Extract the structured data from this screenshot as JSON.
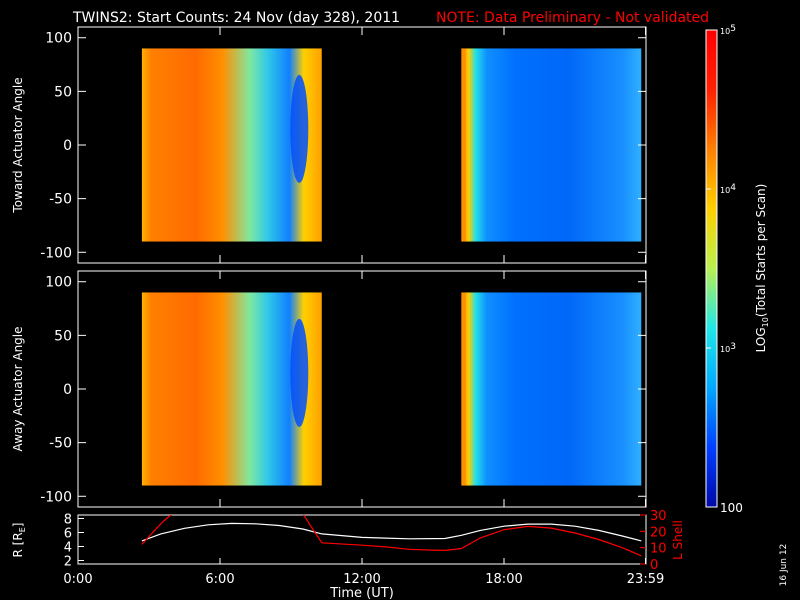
{
  "header": {
    "title": "TWINS2: Start Counts: 24 Nov (day 328), 2011",
    "note": "NOTE: Data Preliminary - Not validated"
  },
  "side_stamp": "16 Jun 12",
  "colors": {
    "background": "#000000",
    "foreground": "#ffffff",
    "note": "#ff0000",
    "lshell": "#ff0000",
    "radius": "#ffffff"
  },
  "colorbar": {
    "label": "LOG10(Total Starts per Scan)",
    "label_parts": {
      "pre": "LOG",
      "sub": "10",
      "post": "(Total Starts per Scan)"
    },
    "scale": "log",
    "range": [
      100,
      100000
    ],
    "ticks": [
      {
        "value": 100000,
        "label": "10",
        "exp": "5"
      },
      {
        "value": 10000,
        "label": "10",
        "exp": "4"
      },
      {
        "value": 1000,
        "label": "10",
        "exp": "3"
      },
      {
        "value": 100,
        "label": "100",
        "exp": ""
      }
    ],
    "colormap": [
      "#0008a8",
      "#0040ff",
      "#00a8ff",
      "#20e8e8",
      "#b8f050",
      "#ffd000",
      "#ff8000",
      "#ff2000",
      "#ff0000"
    ]
  },
  "time_axis": {
    "label": "Time (UT)",
    "range_hours": [
      0,
      24
    ],
    "ticks": [
      {
        "hour": 0,
        "label": "0:00"
      },
      {
        "hour": 6,
        "label": "6:00"
      },
      {
        "hour": 12,
        "label": "12:00"
      },
      {
        "hour": 18,
        "label": "18:00"
      },
      {
        "hour": 23.98,
        "label": "23:59"
      }
    ]
  },
  "chart_data": [
    {
      "type": "heatmap",
      "id": "toward",
      "ylabel": "Toward Actuator Angle",
      "ylim": [
        -110,
        110
      ],
      "yticks": [
        100,
        50,
        0,
        -50,
        -100
      ],
      "angle_range": [
        -90,
        90
      ],
      "segments": [
        {
          "start_hour": 2.7,
          "end_hour": 10.3,
          "dominant_log10": 4.7,
          "features": "high counts (~10^4.5-10^5) early, decreasing with time, low-count loop near 9:20 UT"
        },
        {
          "start_hour": 16.2,
          "end_hour": 23.8,
          "dominant_log10": 2.5,
          "features": "high counts at onset ~16:20 UT, low counts (~10^2.4) through remainder"
        }
      ]
    },
    {
      "type": "heatmap",
      "id": "away",
      "ylabel": "Away Actuator Angle",
      "ylim": [
        -110,
        110
      ],
      "yticks": [
        100,
        50,
        0,
        -50,
        -100
      ],
      "angle_range": [
        -90,
        90
      ],
      "segments": [
        {
          "start_hour": 2.7,
          "end_hour": 10.3,
          "dominant_log10": 4.6,
          "features": "high counts early, decreasing with time, low-count loop near 9:20 UT"
        },
        {
          "start_hour": 16.2,
          "end_hour": 23.8,
          "dominant_log10": 2.4,
          "features": "high counts at onset ~16:20 UT, low counts through remainder"
        }
      ]
    },
    {
      "type": "line",
      "id": "orbit",
      "ylabel_left": {
        "pre": "R [R",
        "sub": "E",
        "post": "]"
      },
      "ylabel_right": "L Shell",
      "left_ylim": [
        1.5,
        8.5
      ],
      "left_yticks": [
        8,
        6,
        4,
        2
      ],
      "right_ylim": [
        0,
        30
      ],
      "right_yticks": [
        30,
        20,
        10,
        0
      ],
      "series": [
        {
          "axis": "left",
          "color": "#ffffff",
          "x": [
            2.7,
            3.5,
            4.5,
            5.5,
            6.5,
            7.5,
            8.5,
            9.5,
            10.3,
            12,
            14,
            15.5,
            16.2,
            17,
            18,
            19,
            20,
            21,
            22,
            23,
            23.8
          ],
          "y": [
            4.8,
            5.8,
            6.6,
            7.1,
            7.3,
            7.25,
            7.0,
            6.5,
            5.8,
            5.3,
            5.1,
            5.15,
            5.6,
            6.3,
            6.9,
            7.2,
            7.2,
            6.9,
            6.3,
            5.5,
            4.8
          ]
        },
        {
          "axis": "right",
          "color": "#ff0000",
          "x": [
            2.7,
            3.2,
            3.6,
            4.0
          ],
          "y": [
            12,
            20,
            26,
            31
          ]
        },
        {
          "axis": "right",
          "color": "#ff0000",
          "x": [
            9.5,
            9.8,
            10.3,
            12,
            13,
            14,
            15,
            15.5,
            16.2,
            17,
            18,
            19,
            20,
            21,
            22,
            23,
            23.8
          ],
          "y": [
            31,
            24,
            13,
            11.5,
            10.5,
            9,
            8.5,
            8.3,
            9.5,
            16,
            21,
            23,
            22,
            19,
            15,
            10,
            5
          ]
        }
      ]
    }
  ]
}
